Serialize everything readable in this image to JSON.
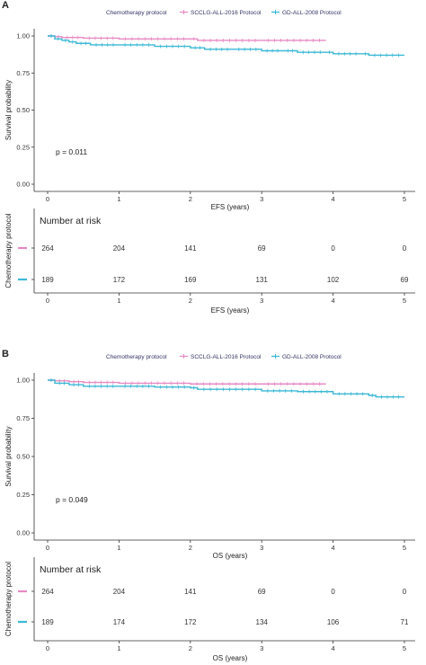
{
  "colors": {
    "sccclg": "#e78ac3",
    "gd": "#3cb8d6",
    "axis": "#333333"
  },
  "panels": [
    {
      "panel_label": "A",
      "legend_title": "Chemotherapy protocol",
      "legend_items": [
        {
          "label": "SCCLG-ALL-2016 Protocol",
          "color_key": "sccclg"
        },
        {
          "label": "GD-ALL-2008 Protocol",
          "color_key": "gd"
        }
      ],
      "ylabel": "Survival probability",
      "xlabel": "EFS (years)",
      "pvalue": "p = 0.011",
      "risk": {
        "title": "Number at risk",
        "ylabel": "Chemotherapy protocol",
        "xlabel": "EFS (years)"
      }
    },
    {
      "panel_label": "B",
      "legend_title": "Chemotherapy protocol",
      "legend_items": [
        {
          "label": "SCCLG-ALL-2016 Protocol",
          "color_key": "sccclg"
        },
        {
          "label": "GD-ALL-2008 Protocol",
          "color_key": "gd"
        }
      ],
      "ylabel": "Survival probability",
      "xlabel": "OS (years)",
      "pvalue": "p = 0.049",
      "risk": {
        "title": "Number at risk",
        "ylabel": "Chemotherapy protocol",
        "xlabel": "OS (years)"
      }
    }
  ],
  "chart_data": [
    {
      "type": "line",
      "step": true,
      "title": "",
      "xlabel": "EFS (years)",
      "ylabel": "Survival probability",
      "xlim": [
        0,
        5
      ],
      "ylim": [
        0,
        1
      ],
      "xticks": [
        "0",
        "1",
        "2",
        "3",
        "4",
        "5"
      ],
      "yticks": [
        "0.00",
        "0.25",
        "0.50",
        "0.75",
        "1.00"
      ],
      "grid": false,
      "legend": "top",
      "series": [
        {
          "name": "SCCLG-ALL-2016 Protocol",
          "color_key": "sccclg",
          "x": [
            0,
            0.1,
            0.2,
            0.5,
            1.0,
            2.0,
            2.1,
            3.0,
            3.9
          ],
          "y": [
            1.0,
            0.995,
            0.99,
            0.985,
            0.98,
            0.98,
            0.97,
            0.97,
            0.97
          ]
        },
        {
          "name": "GD-ALL-2008 Protocol",
          "color_key": "gd",
          "x": [
            0,
            0.1,
            0.2,
            0.3,
            0.4,
            0.6,
            1.0,
            1.5,
            2.0,
            2.2,
            2.6,
            3.0,
            3.3,
            3.5,
            3.9,
            4.0,
            4.4,
            4.5,
            5.0
          ],
          "y": [
            1.0,
            0.98,
            0.97,
            0.96,
            0.95,
            0.94,
            0.94,
            0.93,
            0.92,
            0.91,
            0.91,
            0.9,
            0.9,
            0.89,
            0.89,
            0.88,
            0.88,
            0.87,
            0.87
          ]
        }
      ]
    },
    {
      "type": "table",
      "title": "Number at risk",
      "xlabel": "EFS (years)",
      "ylabel": "Chemotherapy protocol",
      "x": [
        0,
        1,
        2,
        3,
        4,
        5
      ],
      "xticks": [
        "0",
        "1",
        "2",
        "3",
        "4",
        "5"
      ],
      "series": [
        {
          "name": "SCCLG-ALL-2016 Protocol",
          "color_key": "sccclg",
          "values": [
            264,
            204,
            141,
            69,
            0,
            0
          ]
        },
        {
          "name": "GD-ALL-2008 Protocol",
          "color_key": "gd",
          "values": [
            189,
            172,
            169,
            131,
            102,
            69
          ]
        }
      ]
    },
    {
      "type": "line",
      "step": true,
      "title": "",
      "xlabel": "OS (years)",
      "ylabel": "Survival probability",
      "xlim": [
        0,
        5
      ],
      "ylim": [
        0,
        1
      ],
      "xticks": [
        "0",
        "1",
        "2",
        "3",
        "4",
        "5"
      ],
      "yticks": [
        "0.00",
        "0.25",
        "0.50",
        "0.75",
        "1.00"
      ],
      "grid": false,
      "legend": "top",
      "series": [
        {
          "name": "SCCLG-ALL-2016 Protocol",
          "color_key": "sccclg",
          "x": [
            0,
            0.1,
            0.3,
            0.5,
            1.0,
            2.0,
            3.0,
            3.9
          ],
          "y": [
            1.0,
            0.995,
            0.99,
            0.985,
            0.98,
            0.975,
            0.975,
            0.975
          ]
        },
        {
          "name": "GD-ALL-2008 Protocol",
          "color_key": "gd",
          "x": [
            0,
            0.1,
            0.3,
            0.5,
            1.0,
            1.5,
            2.0,
            2.1,
            3.0,
            3.5,
            4.0,
            4.5,
            4.6,
            5.0
          ],
          "y": [
            1.0,
            0.98,
            0.97,
            0.96,
            0.96,
            0.955,
            0.95,
            0.94,
            0.93,
            0.925,
            0.91,
            0.9,
            0.89,
            0.89
          ]
        }
      ]
    },
    {
      "type": "table",
      "title": "Number at risk",
      "xlabel": "OS (years)",
      "ylabel": "Chemotherapy protocol",
      "x": [
        0,
        1,
        2,
        3,
        4,
        5
      ],
      "xticks": [
        "0",
        "1",
        "2",
        "3",
        "4",
        "5"
      ],
      "series": [
        {
          "name": "SCCLG-ALL-2016 Protocol",
          "color_key": "sccclg",
          "values": [
            264,
            204,
            141,
            69,
            0,
            0
          ]
        },
        {
          "name": "GD-ALL-2008 Protocol",
          "color_key": "gd",
          "values": [
            189,
            174,
            172,
            134,
            106,
            71
          ]
        }
      ]
    }
  ]
}
